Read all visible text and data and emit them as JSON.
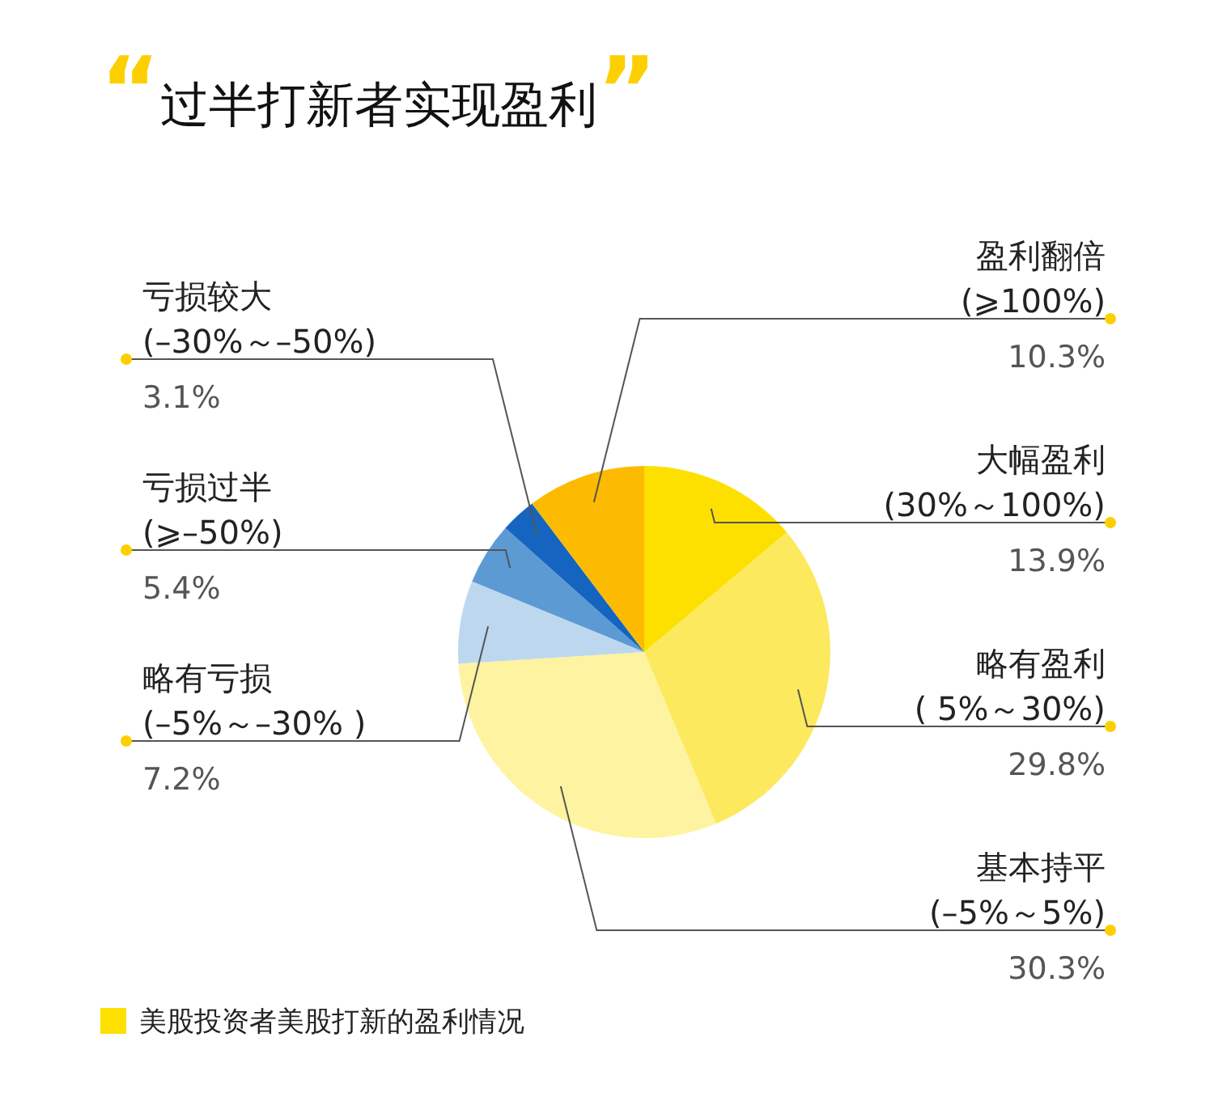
{
  "chart_data": {
    "type": "pie",
    "title": "“过半打新者实现盈利”",
    "categories": [
      "大幅盈利\n(30%～100%)",
      "略有盈利\n( 5%～30%)",
      "基本持平\n(–5%～5%)",
      "略有亏损\n(–5%～–30% )",
      "亏损过半\n(⩾–50%)",
      "亏损较大\n(–30%～–50%)",
      "盈利翻倍\n(⩾100%)"
    ],
    "series": [
      {
        "name": "美股投资者美股打新的盈利情况",
        "color": "#fde000",
        "values": [
          13.9,
          29.8,
          30.3,
          7.2,
          5.4,
          3.1,
          10.3
        ],
        "colors": [
          "#fde000",
          "#fde95e",
          "#fef3a0",
          "#bdd8ee",
          "#5c9ad4",
          "#1565c0",
          "#fcbb00"
        ],
        "value_labels": [
          "13.9%",
          "29.8%",
          "30.3%",
          "7.2%",
          "5.4%",
          "3.1%",
          "10.3%"
        ]
      }
    ],
    "legend": "bottom left"
  }
}
